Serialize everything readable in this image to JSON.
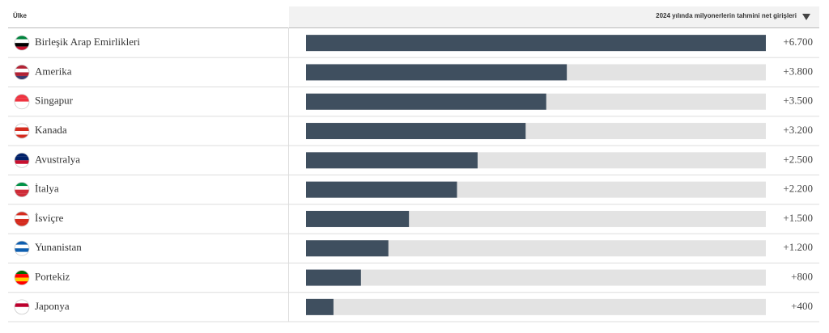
{
  "chart_data": {
    "type": "bar",
    "columns": [
      "Ülke",
      "2024 yılında milyonerlerin tahmini net girişleri"
    ],
    "categories": [
      "Birleşik Arap Emirlikleri",
      "Amerika",
      "Singapur",
      "Kanada",
      "Avustralya",
      "İtalya",
      "İsviçre",
      "Yunanistan",
      "Portekiz",
      "Japonya"
    ],
    "values": [
      6700,
      3800,
      3500,
      3200,
      2500,
      2200,
      1500,
      1200,
      800,
      400
    ],
    "value_labels": [
      "+6.700",
      "+3.800",
      "+3.500",
      "+3.200",
      "+2.500",
      "+2.200",
      "+1.500",
      "+1.200",
      "+800",
      "+400"
    ],
    "color": "#3f4f5f",
    "xlim": [
      0,
      6700
    ]
  }
}
